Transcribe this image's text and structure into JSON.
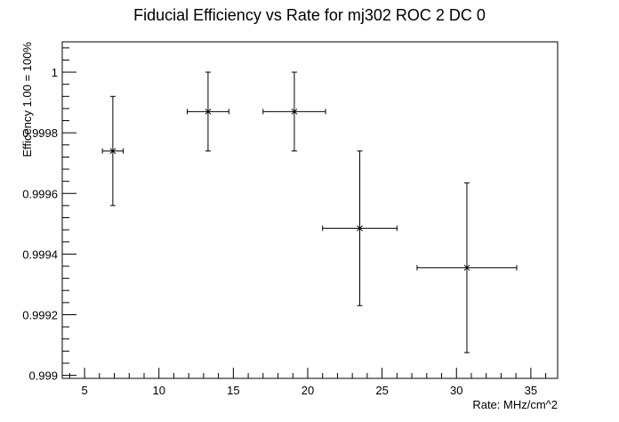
{
  "chart_data": {
    "type": "scatter",
    "title": "Fiducial Efficiency vs Rate for mj302 ROC 2 DC 0",
    "xlabel": "Rate: MHz/cm^2",
    "ylabel": "Efficency 1.00 = 100%",
    "xlim": [
      3.5,
      36.8
    ],
    "ylim": [
      0.99899,
      1.0001
    ],
    "x_ticks": [
      5,
      10,
      15,
      20,
      25,
      30,
      35
    ],
    "x_tick_labels": [
      "5",
      "10",
      "15",
      "20",
      "25",
      "30",
      "35"
    ],
    "y_ticks": [
      0.999,
      0.9992,
      0.9994,
      0.9996,
      0.9998,
      1.0
    ],
    "y_tick_labels": [
      "0.999",
      "0.9992",
      "0.9994",
      "0.9996",
      "0.9998",
      "1"
    ],
    "grid": false,
    "marker": "x",
    "color": "#000000",
    "points": [
      {
        "x": 6.9,
        "y": 0.99974,
        "xerr": 0.7,
        "yerr_low": 0.00018,
        "yerr_high": 0.00018
      },
      {
        "x": 13.3,
        "y": 0.99987,
        "xerr": 1.4,
        "yerr_low": 0.00013,
        "yerr_high": 0.00013
      },
      {
        "x": 19.1,
        "y": 0.99987,
        "xerr": 2.1,
        "yerr_low": 0.00013,
        "yerr_high": 0.00013
      },
      {
        "x": 23.5,
        "y": 0.999485,
        "xerr": 2.5,
        "yerr_low": 0.000255,
        "yerr_high": 0.000255
      },
      {
        "x": 30.7,
        "y": 0.999355,
        "xerr": 3.35,
        "yerr_low": 0.00028,
        "yerr_high": 0.00028
      }
    ]
  }
}
